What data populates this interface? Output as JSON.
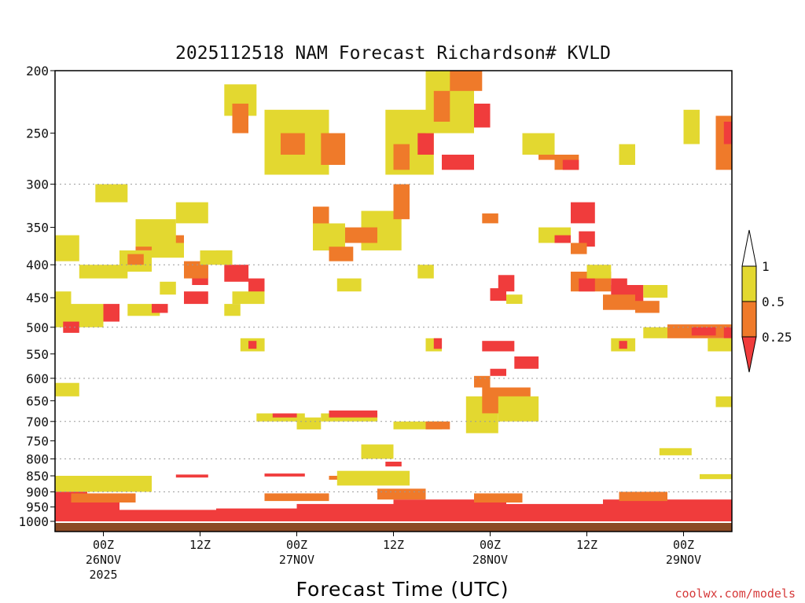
{
  "chart_data": {
    "type": "heatmap",
    "title": "2025112518 NAM Forecast Richardson# KVLD",
    "xlabel": "Forecast Time (UTC)",
    "credit": "coolwx.com/models",
    "y_axis": {
      "quantity": "pressure (hPa)",
      "scale": "log",
      "inverted": true,
      "range": [
        1000,
        200
      ],
      "ticks": [
        200,
        250,
        300,
        350,
        400,
        450,
        500,
        550,
        600,
        650,
        700,
        750,
        800,
        850,
        900,
        950,
        1000
      ],
      "dotted_gridlines": [
        300,
        400,
        500,
        600,
        700,
        800,
        900
      ]
    },
    "x_axis": {
      "units": "hours from 2025-11-25 18Z",
      "range": [
        0,
        84
      ],
      "ticks": [
        {
          "hour": 6,
          "lines": [
            "00Z",
            "26NOV",
            "2025"
          ]
        },
        {
          "hour": 18,
          "lines": [
            "12Z"
          ]
        },
        {
          "hour": 30,
          "lines": [
            "00Z",
            "27NOV"
          ]
        },
        {
          "hour": 42,
          "lines": [
            "12Z"
          ]
        },
        {
          "hour": 54,
          "lines": [
            "00Z",
            "28NOV"
          ]
        },
        {
          "hour": 66,
          "lines": [
            "12Z"
          ]
        },
        {
          "hour": 78,
          "lines": [
            "00Z",
            "29NOV"
          ]
        }
      ]
    },
    "colorbar": {
      "labels": [
        "1",
        "0.5",
        "0.25"
      ],
      "bins": [
        {
          "range": "> 1",
          "color": "#ffffff"
        },
        {
          "range": "0.5 - 1",
          "color": "#e3d830"
        },
        {
          "range": "0.25 - 0.5",
          "color": "#ef7a2a"
        },
        {
          "range": "< 0.25",
          "color": "#f03c3c"
        }
      ]
    },
    "colors": {
      "yellow": "#e3d830",
      "orange": "#ef7a2a",
      "red": "#f03c3c",
      "ground": "#8b4a24"
    },
    "cells": [
      [
        0,
        12,
        850,
        900,
        "y"
      ],
      [
        0,
        4,
        900,
        1000,
        "r"
      ],
      [
        4,
        8,
        920,
        1000,
        "r"
      ],
      [
        8,
        20,
        960,
        1000,
        "r"
      ],
      [
        20,
        30,
        955,
        1000,
        "r"
      ],
      [
        30,
        42,
        940,
        1000,
        "r"
      ],
      [
        42,
        56,
        925,
        1000,
        "r"
      ],
      [
        56,
        68,
        940,
        1000,
        "r"
      ],
      [
        68,
        84,
        925,
        1000,
        "r"
      ],
      [
        2,
        10,
        905,
        935,
        "o"
      ],
      [
        26,
        34,
        905,
        930,
        "o"
      ],
      [
        40,
        46,
        890,
        925,
        "o"
      ],
      [
        52,
        58,
        905,
        935,
        "o"
      ],
      [
        70,
        76,
        900,
        930,
        "o"
      ],
      [
        15,
        19,
        846,
        855,
        "r"
      ],
      [
        26,
        31,
        843,
        852,
        "r"
      ],
      [
        34,
        38,
        850,
        862,
        "o"
      ],
      [
        35,
        44,
        835,
        880,
        "y"
      ],
      [
        41,
        43,
        808,
        822,
        "r"
      ],
      [
        38,
        42,
        760,
        800,
        "y"
      ],
      [
        56,
        58,
        632,
        651,
        "o"
      ],
      [
        0,
        3,
        610,
        640,
        "y"
      ],
      [
        82,
        84,
        640,
        665,
        "y"
      ],
      [
        80,
        84,
        845,
        860,
        "y"
      ],
      [
        75,
        79,
        770,
        790,
        "y"
      ],
      [
        25,
        31,
        680,
        700,
        "y"
      ],
      [
        27,
        30,
        680,
        690,
        "r"
      ],
      [
        33,
        40,
        680,
        700,
        "y"
      ],
      [
        34,
        40,
        673,
        690,
        "r"
      ],
      [
        30,
        33,
        690,
        720,
        "y"
      ],
      [
        42,
        48,
        700,
        720,
        "y"
      ],
      [
        46,
        49,
        700,
        720,
        "o"
      ],
      [
        51,
        55,
        640,
        730,
        "y"
      ],
      [
        52,
        54,
        595,
        620,
        "o"
      ],
      [
        53,
        59,
        620,
        680,
        "o"
      ],
      [
        55,
        60,
        640,
        700,
        "y"
      ],
      [
        54,
        56,
        580,
        595,
        "r"
      ],
      [
        23,
        26,
        520,
        545,
        "y"
      ],
      [
        24,
        25,
        525,
        540,
        "r"
      ],
      [
        46,
        48,
        520,
        545,
        "y"
      ],
      [
        47,
        48,
        520,
        540,
        "r"
      ],
      [
        53,
        57,
        525,
        545,
        "r"
      ],
      [
        57,
        60,
        555,
        580,
        "r"
      ],
      [
        69,
        72,
        520,
        545,
        "y"
      ],
      [
        70,
        71,
        525,
        540,
        "r"
      ],
      [
        73,
        76,
        500,
        520,
        "y"
      ],
      [
        76,
        84,
        495,
        520,
        "o"
      ],
      [
        79,
        82,
        500,
        515,
        "r"
      ],
      [
        83,
        84,
        500,
        520,
        "r"
      ],
      [
        81,
        84,
        520,
        545,
        "y"
      ],
      [
        0,
        2,
        440,
        470,
        "y"
      ],
      [
        0,
        6,
        460,
        500,
        "y"
      ],
      [
        1,
        3,
        490,
        510,
        "r"
      ],
      [
        6,
        8,
        460,
        490,
        "r"
      ],
      [
        9,
        13,
        460,
        480,
        "y"
      ],
      [
        12,
        14,
        460,
        475,
        "r"
      ],
      [
        16,
        19,
        440,
        460,
        "r"
      ],
      [
        13,
        15,
        425,
        445,
        "y"
      ],
      [
        17,
        19,
        400,
        430,
        "r"
      ],
      [
        21,
        24,
        400,
        425,
        "r"
      ],
      [
        21,
        23,
        460,
        480,
        "y"
      ],
      [
        24,
        26,
        420,
        450,
        "r"
      ],
      [
        0,
        3,
        360,
        395,
        "y"
      ],
      [
        8,
        12,
        380,
        410,
        "y"
      ],
      [
        9,
        11,
        385,
        400,
        "o"
      ],
      [
        10,
        16,
        360,
        380,
        "o"
      ],
      [
        12,
        14,
        365,
        385,
        "r"
      ],
      [
        16,
        19,
        395,
        420,
        "o"
      ],
      [
        15,
        19,
        320,
        345,
        "y"
      ],
      [
        21,
        25,
        210,
        235,
        "y"
      ],
      [
        22,
        24,
        225,
        250,
        "o"
      ],
      [
        26,
        34,
        230,
        290,
        "y"
      ],
      [
        28,
        31,
        250,
        270,
        "o"
      ],
      [
        33,
        36,
        250,
        280,
        "o"
      ],
      [
        32,
        34,
        325,
        370,
        "o"
      ],
      [
        32,
        36,
        345,
        380,
        "y"
      ],
      [
        34,
        37,
        375,
        395,
        "o"
      ],
      [
        38,
        43,
        330,
        380,
        "y"
      ],
      [
        36,
        40,
        350,
        370,
        "o"
      ],
      [
        42,
        44,
        300,
        340,
        "o"
      ],
      [
        41,
        47,
        230,
        290,
        "y"
      ],
      [
        42,
        44,
        260,
        285,
        "o"
      ],
      [
        45,
        47,
        250,
        270,
        "r"
      ],
      [
        46,
        52,
        200,
        250,
        "y"
      ],
      [
        47,
        49,
        215,
        240,
        "o"
      ],
      [
        49,
        53,
        200,
        215,
        "o"
      ],
      [
        52,
        54,
        225,
        245,
        "r"
      ],
      [
        48,
        50,
        270,
        285,
        "r"
      ],
      [
        50,
        52,
        270,
        285,
        "r"
      ],
      [
        53,
        55,
        333,
        345,
        "o"
      ],
      [
        55,
        57,
        415,
        440,
        "r"
      ],
      [
        54,
        56,
        435,
        455,
        "r"
      ],
      [
        56,
        58,
        445,
        460,
        "y"
      ],
      [
        60,
        62,
        260,
        275,
        "o"
      ],
      [
        58,
        62,
        250,
        270,
        "y"
      ],
      [
        62,
        65,
        270,
        285,
        "o"
      ],
      [
        63,
        65,
        275,
        285,
        "r"
      ],
      [
        60,
        64,
        350,
        370,
        "y"
      ],
      [
        62,
        64,
        360,
        370,
        "r"
      ],
      [
        64,
        67,
        320,
        345,
        "r"
      ],
      [
        65,
        67,
        355,
        375,
        "r"
      ],
      [
        64,
        66,
        370,
        385,
        "o"
      ],
      [
        64,
        69,
        410,
        440,
        "o"
      ],
      [
        65,
        67,
        420,
        440,
        "r"
      ],
      [
        66,
        69,
        400,
        420,
        "y"
      ],
      [
        69,
        73,
        430,
        460,
        "r"
      ],
      [
        68,
        72,
        445,
        470,
        "o"
      ],
      [
        72,
        75,
        455,
        475,
        "o"
      ],
      [
        70,
        72,
        260,
        280,
        "y"
      ],
      [
        69,
        71,
        420,
        440,
        "r"
      ],
      [
        73,
        76,
        430,
        450,
        "y"
      ],
      [
        78,
        80,
        230,
        260,
        "y"
      ],
      [
        82,
        84,
        235,
        285,
        "o"
      ],
      [
        83,
        84,
        240,
        260,
        "r"
      ],
      [
        5,
        9,
        300,
        320,
        "y"
      ],
      [
        10,
        15,
        340,
        375,
        "y"
      ],
      [
        3,
        9,
        400,
        420,
        "y"
      ],
      [
        22,
        26,
        440,
        460,
        "y"
      ],
      [
        18,
        22,
        380,
        400,
        "y"
      ],
      [
        35,
        38,
        420,
        440,
        "y"
      ],
      [
        45,
        47,
        400,
        420,
        "y"
      ],
      [
        20,
        22,
        380,
        400,
        "y"
      ],
      [
        12,
        16,
        370,
        390,
        "y"
      ]
    ]
  }
}
